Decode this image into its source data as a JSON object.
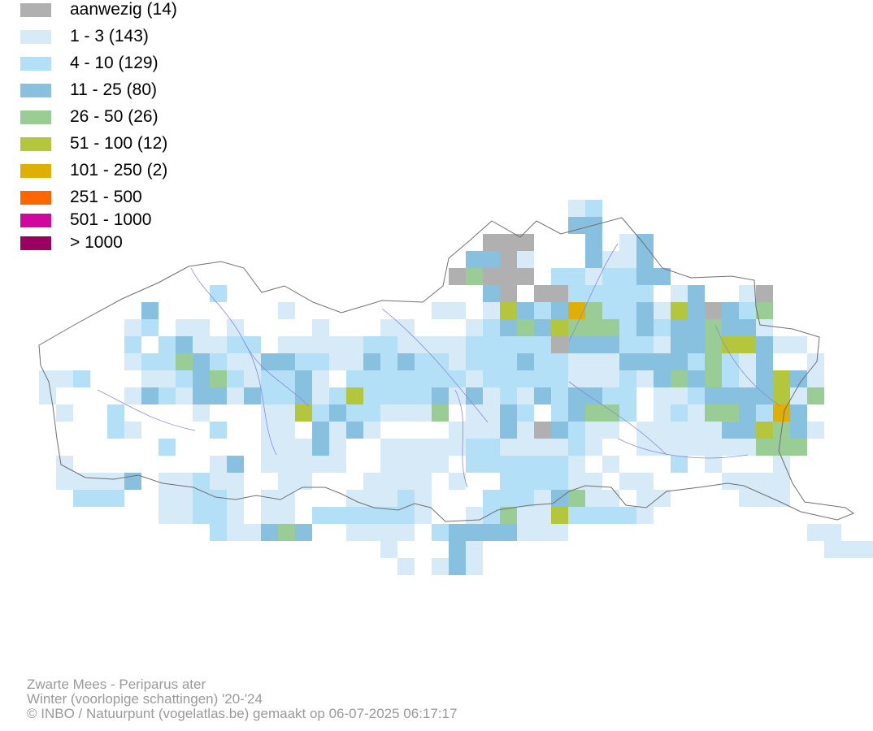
{
  "legend": [
    {
      "label": "aanwezig (14)",
      "color": "#b0b0b0"
    },
    {
      "label": "1 - 3 (143)",
      "color": "#d6eaf8"
    },
    {
      "label": "4 - 10 (129)",
      "color": "#b3e0f7"
    },
    {
      "label": "11 - 25 (80)",
      "color": "#88c1e0"
    },
    {
      "label": "26 - 50 (26)",
      "color": "#9acd95"
    },
    {
      "label": "51 - 100 (12)",
      "color": "#b4c63c"
    },
    {
      "label": "101 - 250 (2)",
      "color": "#e0af05"
    },
    {
      "label": "251 - 500",
      "color": "#ff6600"
    },
    {
      "label": "501 - 1000",
      "color": "#d0089e"
    },
    {
      "label": "> 1000",
      "color": "#99005f"
    }
  ],
  "credits": {
    "species": "Zwarte Mees - Periparus ater",
    "period": "Winter (voorlopige schattingen) '20-'24",
    "copyright": "© INBO / Natuurpunt (vogelatlas.be) gemaakt op 06-07-2025 06:17:17"
  },
  "map_colors": {
    "border": "#707070",
    "river": "#8a8ad8"
  }
}
